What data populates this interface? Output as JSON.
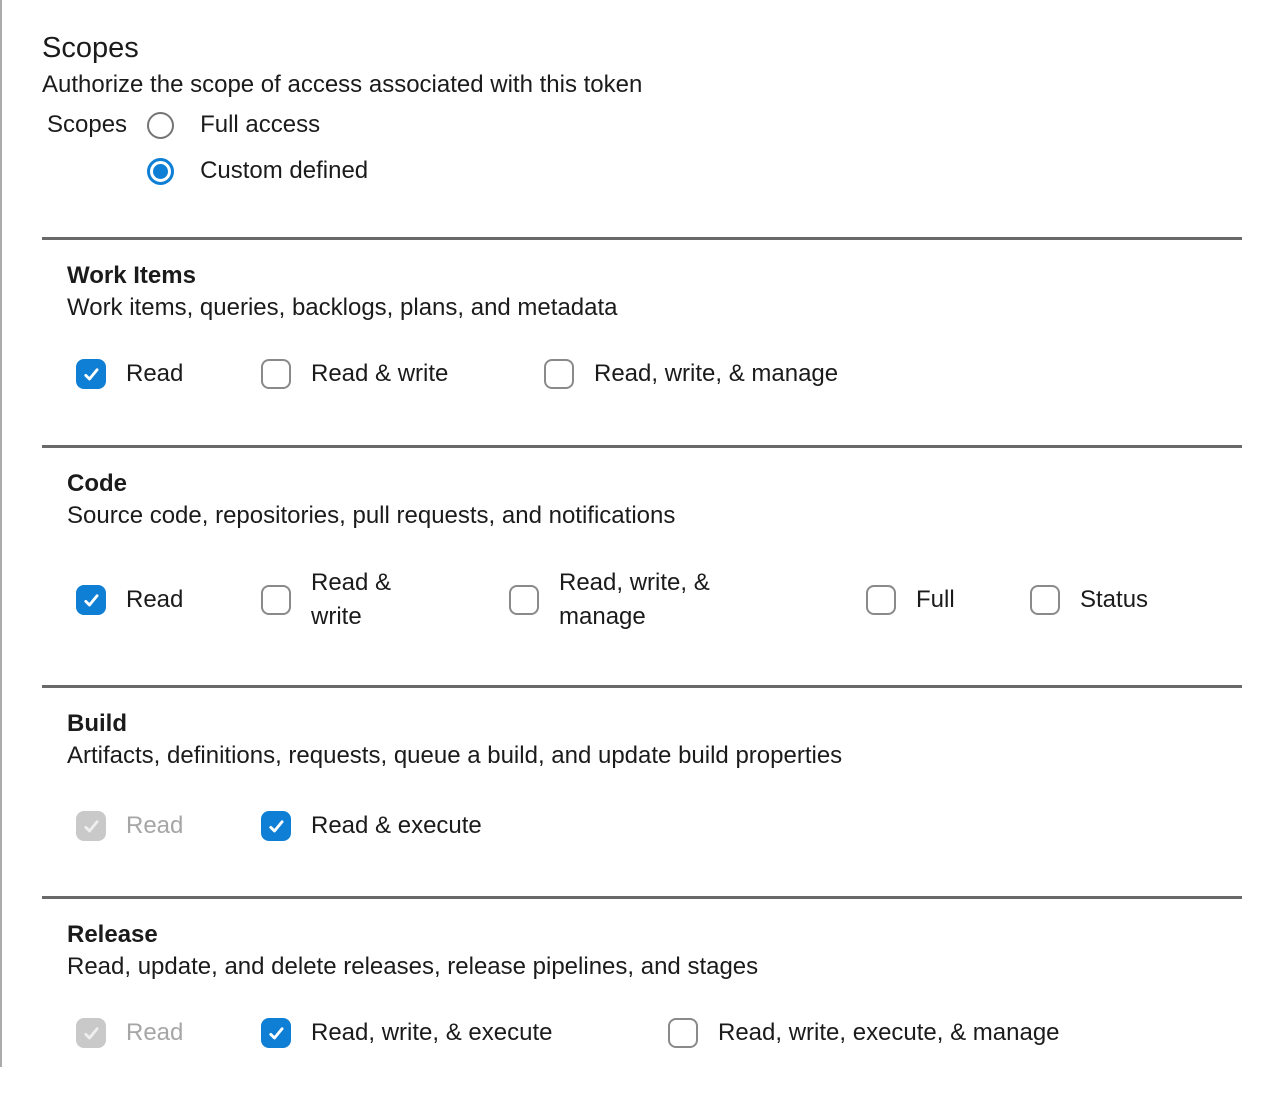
{
  "page": {
    "title": "Scopes",
    "subtitle": "Authorize the scope of access associated with this token"
  },
  "scopes_radio": {
    "label": "Scopes",
    "options": [
      {
        "label": "Full access",
        "selected": false
      },
      {
        "label": "Custom defined",
        "selected": true
      }
    ]
  },
  "sections": [
    {
      "name": "Work Items",
      "description": "Work items, queries, backlogs, plans, and metadata",
      "options": [
        {
          "label": "Read",
          "state": "checked"
        },
        {
          "label": "Read & write",
          "state": "unchecked"
        },
        {
          "label": "Read, write, & manage",
          "state": "unchecked"
        }
      ]
    },
    {
      "name": "Code",
      "description": "Source code, repositories, pull requests, and notifications",
      "options": [
        {
          "label": "Read",
          "state": "checked"
        },
        {
          "label": "Read & write",
          "state": "unchecked"
        },
        {
          "label": "Read, write, & manage",
          "state": "unchecked"
        },
        {
          "label": "Full",
          "state": "unchecked"
        },
        {
          "label": "Status",
          "state": "unchecked"
        }
      ]
    },
    {
      "name": "Build",
      "description": "Artifacts, definitions, requests, queue a build, and update build properties",
      "options": [
        {
          "label": "Read",
          "state": "checked-disabled"
        },
        {
          "label": "Read & execute",
          "state": "checked"
        }
      ]
    },
    {
      "name": "Release",
      "description": "Read, update, and delete releases, release pipelines, and stages",
      "options": [
        {
          "label": "Read",
          "state": "checked-disabled"
        },
        {
          "label": "Read, write, & execute",
          "state": "checked"
        },
        {
          "label": "Read, write, execute, & manage",
          "state": "unchecked"
        }
      ]
    }
  ],
  "icons": {
    "checkmark": "✓"
  },
  "colors": {
    "accent_blue": "#0f7fd6",
    "divider": "#696969",
    "unchecked_border": "#8a8a8a",
    "disabled_checkbox_bg": "#c9c9c9",
    "disabled_label_text": "#a6a6a6",
    "text": "#1b1b1b",
    "panel_edge": "#ababab"
  }
}
